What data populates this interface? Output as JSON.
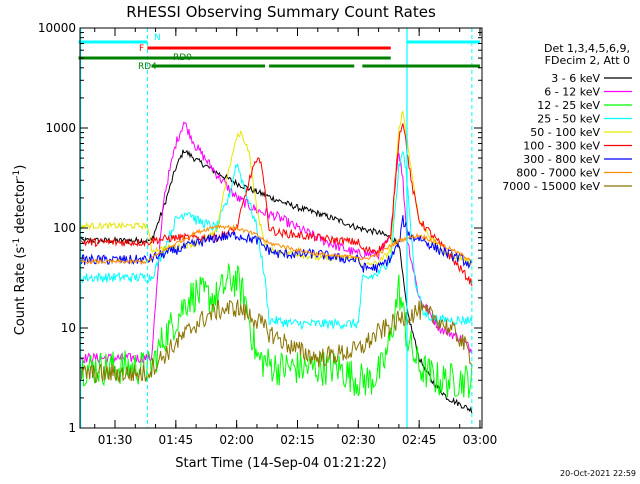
{
  "chart_data": {
    "type": "line",
    "title": "RHESSI Observing Summary Count Rates",
    "xlabel": "Start Time (14-Sep-04 01:21:22)",
    "ylabel_main": "Count Rate (s",
    "ylabel_sup1": "-1",
    "ylabel_mid": " detector",
    "ylabel_sup2": "-1",
    "ylabel_end": ")",
    "footer": "20-Oct-2021 22:59",
    "xlim": [
      "01:21:22",
      "03:00:30"
    ],
    "x_ticks": [
      "01:30",
      "01:45",
      "02:00",
      "02:15",
      "02:30",
      "02:45",
      "03:00"
    ],
    "y_scale": "log",
    "ylim": [
      1,
      10000
    ],
    "y_ticks": [
      "1",
      "10",
      "100",
      "1000",
      "10000"
    ],
    "legend_header": [
      "Det 1,3,4,5,6,9,",
      "FDecim 2, Att 0"
    ],
    "legend_position": "right",
    "colors": {
      "3 - 6 keV": "#000000",
      "6 - 12 keV": "#ff00ff",
      "12 - 25 keV": "#00ff00",
      "25 - 50 keV": "#00ffff",
      "50 - 100 keV": "#e6e600",
      "100 - 300 keV": "#ff0000",
      "300 - 800 keV": "#0000ff",
      "800 - 7000 keV": "#ff8c00",
      "7000 - 15000 keV": "#8b7500"
    },
    "series": [
      {
        "name": "3 - 6 keV",
        "x": [
          "01:21",
          "01:38",
          "01:39",
          "01:42",
          "01:45",
          "01:47",
          "01:50",
          "01:55",
          "02:00",
          "02:05",
          "02:10",
          "02:15",
          "02:20",
          "02:25",
          "02:30",
          "02:35",
          "02:38",
          "02:40",
          "02:42",
          "02:45",
          "02:48",
          "02:52",
          "02:58"
        ],
        "y": [
          75,
          75,
          75,
          160,
          400,
          600,
          480,
          360,
          280,
          230,
          190,
          160,
          140,
          120,
          100,
          90,
          80,
          70,
          15,
          5,
          3,
          2,
          1.5
        ]
      },
      {
        "name": "6 - 12 keV",
        "x": [
          "01:21",
          "01:38",
          "01:39",
          "01:42",
          "01:45",
          "01:47",
          "01:50",
          "01:55",
          "02:00",
          "02:05",
          "02:10",
          "02:15",
          "02:20",
          "02:25",
          "02:30",
          "02:35",
          "02:38",
          "02:39",
          "02:40",
          "02:41",
          "02:42",
          "02:45",
          "02:50",
          "02:55",
          "02:58"
        ],
        "y": [
          5,
          5,
          5,
          200,
          700,
          1150,
          650,
          350,
          200,
          150,
          130,
          100,
          80,
          65,
          55,
          55,
          80,
          300,
          600,
          300,
          80,
          20,
          10,
          8,
          6
        ]
      },
      {
        "name": "12 - 25 keV",
        "x": [
          "01:21",
          "01:38",
          "01:39",
          "01:42",
          "01:45",
          "01:48",
          "01:50",
          "01:55",
          "01:58",
          "02:00",
          "02:02",
          "02:05",
          "02:10",
          "02:15",
          "02:20",
          "02:25",
          "02:30",
          "02:33",
          "02:36",
          "02:38",
          "02:40",
          "02:42",
          "02:45",
          "02:50",
          "02:58"
        ],
        "y": [
          4,
          4,
          4,
          8,
          12,
          20,
          22,
          20,
          30,
          30,
          20,
          5,
          4,
          4,
          4,
          4,
          3,
          3,
          4,
          8,
          25,
          8,
          4,
          3,
          3
        ]
      },
      {
        "name": "25 - 50 keV",
        "x": [
          "01:21",
          "01:38",
          "01:39",
          "01:42",
          "01:45",
          "01:48",
          "01:50",
          "01:55",
          "01:58",
          "02:00",
          "02:02",
          "02:05",
          "02:07",
          "02:08",
          "02:15",
          "02:20",
          "02:25",
          "02:30",
          "02:31",
          "02:35",
          "02:38",
          "02:40",
          "02:41",
          "02:42",
          "02:44",
          "02:46",
          "02:50",
          "02:55",
          "02:58"
        ],
        "y": [
          32,
          32,
          32,
          60,
          120,
          150,
          120,
          100,
          200,
          450,
          250,
          100,
          30,
          12,
          11,
          11,
          11,
          11,
          30,
          35,
          50,
          400,
          600,
          300,
          30,
          14,
          12,
          12,
          12
        ]
      },
      {
        "name": "50 - 100 keV",
        "x": [
          "01:21",
          "01:38",
          "01:39",
          "01:45",
          "01:50",
          "01:55",
          "01:57",
          "02:00",
          "02:01",
          "02:03",
          "02:05",
          "02:07",
          "02:08",
          "02:15",
          "02:20",
          "02:25",
          "02:30",
          "02:31",
          "02:35",
          "02:38",
          "02:40",
          "02:41",
          "02:43",
          "02:45",
          "02:50",
          "02:55",
          "02:58"
        ],
        "y": [
          105,
          105,
          60,
          65,
          70,
          90,
          250,
          800,
          900,
          600,
          150,
          70,
          60,
          55,
          50,
          50,
          50,
          42,
          45,
          60,
          1000,
          1500,
          400,
          120,
          60,
          50,
          45
        ]
      },
      {
        "name": "100 - 300 keV",
        "x": [
          "01:21",
          "01:38",
          "01:39",
          "01:45",
          "01:50",
          "01:55",
          "02:00",
          "02:02",
          "02:04",
          "02:06",
          "02:08",
          "02:10",
          "02:15",
          "02:20",
          "02:25",
          "02:30",
          "02:31",
          "02:35",
          "02:38",
          "02:40",
          "02:41",
          "02:43",
          "02:45",
          "02:50",
          "02:55",
          "02:58"
        ],
        "y": [
          72,
          72,
          75,
          80,
          80,
          80,
          100,
          200,
          400,
          500,
          100,
          90,
          85,
          80,
          75,
          72,
          60,
          60,
          80,
          800,
          1200,
          300,
          120,
          70,
          40,
          28
        ]
      },
      {
        "name": "300 - 800 keV",
        "x": [
          "01:21",
          "01:38",
          "01:39",
          "01:45",
          "01:50",
          "01:55",
          "02:00",
          "02:05",
          "02:08",
          "02:10",
          "02:15",
          "02:20",
          "02:25",
          "02:30",
          "02:31",
          "02:35",
          "02:38",
          "02:40",
          "02:41",
          "02:43",
          "02:45",
          "02:50",
          "02:55",
          "02:58"
        ],
        "y": [
          48,
          48,
          50,
          60,
          70,
          80,
          85,
          75,
          60,
          55,
          55,
          55,
          50,
          48,
          40,
          40,
          50,
          70,
          120,
          80,
          80,
          60,
          50,
          42
        ]
      },
      {
        "name": "800 - 7000 keV",
        "x": [
          "01:21",
          "01:38",
          "01:39",
          "01:45",
          "01:50",
          "01:55",
          "02:00",
          "02:05",
          "02:08",
          "02:10",
          "02:15",
          "02:20",
          "02:25",
          "02:30",
          "02:31",
          "02:35",
          "02:40",
          "02:45",
          "02:50",
          "02:55",
          "02:58"
        ],
        "y": [
          46,
          46,
          50,
          70,
          90,
          105,
          100,
          85,
          70,
          68,
          60,
          55,
          52,
          52,
          48,
          55,
          75,
          85,
          70,
          55,
          48
        ]
      },
      {
        "name": "7000 - 15000 keV",
        "x": [
          "01:21",
          "01:38",
          "01:39",
          "01:45",
          "01:50",
          "01:55",
          "02:00",
          "02:05",
          "02:08",
          "02:10",
          "02:15",
          "02:20",
          "02:25",
          "02:30",
          "02:35",
          "02:40",
          "02:45",
          "02:50",
          "02:55",
          "02:58"
        ],
        "y": [
          3.5,
          3.5,
          4,
          7,
          11,
          15,
          16,
          12,
          9,
          8,
          6,
          5,
          5.5,
          6,
          9,
          12,
          15,
          12,
          8,
          5
        ]
      }
    ],
    "status_bars": [
      {
        "label": "N",
        "color": "#00ffff",
        "segments": [
          [
            "01:21",
            "01:38"
          ],
          [
            "02:42",
            "03:00"
          ]
        ]
      },
      {
        "label": "F",
        "color": "#ff0000",
        "segments": [
          [
            "01:38",
            "02:38"
          ]
        ]
      },
      {
        "label": "RD0",
        "color": "#008000",
        "segments": [
          [
            "01:21",
            "02:38"
          ]
        ]
      },
      {
        "label": "RD4",
        "color": "#008000",
        "segments": [
          [
            "01:39",
            "02:07"
          ],
          [
            "02:08",
            "02:29"
          ],
          [
            "02:31",
            "03:00"
          ]
        ]
      }
    ],
    "vertical_markers": {
      "solid": [
        "01:21:30",
        "02:42"
      ],
      "dashed": [
        "01:38",
        "02:58"
      ]
    }
  }
}
